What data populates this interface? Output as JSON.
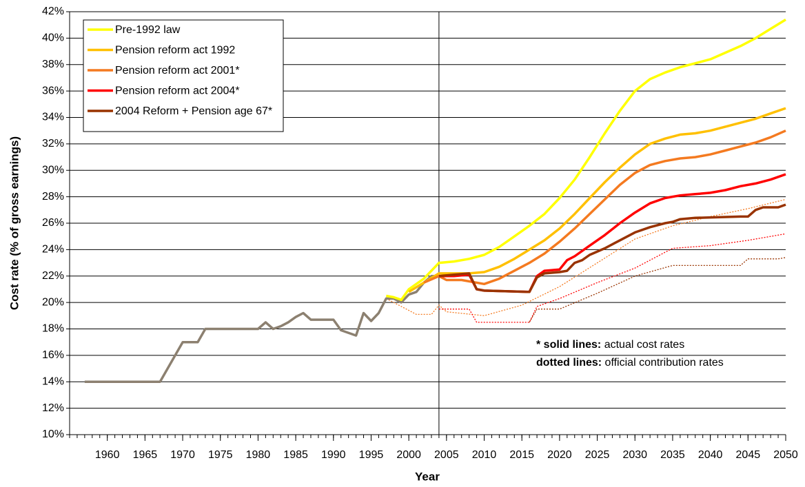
{
  "chart_data": {
    "type": "line",
    "xlabel": "Year",
    "ylabel": "Cost rate (% of gross earnings)",
    "xlim": [
      1955,
      2050
    ],
    "xticks": [
      1960,
      1965,
      1970,
      1975,
      1980,
      1985,
      1990,
      1995,
      2000,
      2005,
      2010,
      2015,
      2020,
      2025,
      2030,
      2035,
      2040,
      2045,
      2050
    ],
    "ylim": [
      10,
      42
    ],
    "yticks": [
      {
        "value": 10,
        "label": "10%"
      },
      {
        "value": 12,
        "label": "12%"
      },
      {
        "value": 14,
        "label": "14%"
      },
      {
        "value": 16,
        "label": "16%"
      },
      {
        "value": 18,
        "label": "18%"
      },
      {
        "value": 20,
        "label": "20%"
      },
      {
        "value": 22,
        "label": "22%"
      },
      {
        "value": 24,
        "label": "24%"
      },
      {
        "value": 26,
        "label": "26%"
      },
      {
        "value": 28,
        "label": "28%"
      },
      {
        "value": 30,
        "label": "30%"
      },
      {
        "value": 32,
        "label": "32%"
      },
      {
        "value": 34,
        "label": "34%"
      },
      {
        "value": 36,
        "label": "36%"
      },
      {
        "value": 38,
        "label": "38%"
      },
      {
        "value": 40,
        "label": "40%"
      },
      {
        "value": 42,
        "label": "42%"
      }
    ],
    "grid": true,
    "legend": "upper-left",
    "reference_x": 2004,
    "annotations": [
      {
        "bold": "* solid lines:",
        "text": " actual cost rates"
      },
      {
        "bold": "dotted lines:",
        "text": " official contribution rates"
      }
    ],
    "series": [
      {
        "name": "Pre-1992 law",
        "color": "#ffff00",
        "x": [
          1997,
          1998,
          1999,
          2000,
          2002,
          2004,
          2006,
          2008,
          2010,
          2012,
          2014,
          2016,
          2018,
          2020,
          2022,
          2024,
          2026,
          2028,
          2030,
          2032,
          2034,
          2036,
          2038,
          2040,
          2042,
          2044,
          2046,
          2048,
          2050
        ],
        "values": [
          20.5,
          20.4,
          20.2,
          21,
          21.8,
          23,
          23.1,
          23.3,
          23.6,
          24.2,
          25,
          25.8,
          26.7,
          27.9,
          29.3,
          31,
          32.8,
          34.5,
          36,
          36.9,
          37.4,
          37.8,
          38.1,
          38.4,
          38.9,
          39.4,
          40,
          40.7,
          41.4
        ]
      },
      {
        "name": "Pension reform act 1992",
        "color": "#ffc000",
        "x": [
          2000,
          2002,
          2004,
          2006,
          2008,
          2010,
          2012,
          2014,
          2016,
          2018,
          2020,
          2022,
          2024,
          2026,
          2028,
          2030,
          2032,
          2034,
          2036,
          2038,
          2040,
          2042,
          2044,
          2046,
          2048,
          2050
        ],
        "values": [
          20.8,
          21.5,
          22.2,
          22.2,
          22.2,
          22.3,
          22.7,
          23.3,
          24,
          24.7,
          25.6,
          26.7,
          27.9,
          29.1,
          30.2,
          31.2,
          32,
          32.4,
          32.7,
          32.8,
          33,
          33.3,
          33.6,
          33.9,
          34.3,
          34.7
        ]
      },
      {
        "name": "Pension reform act 2001*",
        "color": "#f47a20",
        "x": [
          2002,
          2004,
          2005,
          2007,
          2010,
          2012,
          2014,
          2016,
          2018,
          2020,
          2022,
          2024,
          2026,
          2028,
          2030,
          2032,
          2034,
          2036,
          2038,
          2040,
          2042,
          2044,
          2046,
          2048,
          2050
        ],
        "values": [
          21.5,
          22,
          21.7,
          21.7,
          21.4,
          21.8,
          22.4,
          23,
          23.7,
          24.6,
          25.6,
          26.7,
          27.8,
          28.9,
          29.8,
          30.4,
          30.7,
          30.9,
          31,
          31.2,
          31.5,
          31.8,
          32.1,
          32.5,
          33
        ]
      },
      {
        "name": "Pension reform act 2004*",
        "color": "#ff0000",
        "x": [
          2004,
          2006,
          2008,
          2009,
          2010,
          2016,
          2017,
          2018,
          2020,
          2021,
          2022,
          2024,
          2026,
          2028,
          2030,
          2032,
          2034,
          2036,
          2038,
          2040,
          2042,
          2044,
          2046,
          2048,
          2050
        ],
        "values": [
          22,
          22,
          22.1,
          21,
          20.9,
          20.8,
          22,
          22.4,
          22.5,
          23.2,
          23.5,
          24.3,
          25.1,
          26,
          26.8,
          27.5,
          27.9,
          28.1,
          28.2,
          28.3,
          28.5,
          28.8,
          29,
          29.3,
          29.7
        ]
      },
      {
        "name": "2004 Reform + Pension age 67*",
        "color": "#993300",
        "x": [
          2004,
          2006,
          2008,
          2009,
          2010,
          2016,
          2017,
          2018,
          2020,
          2021,
          2022,
          2023,
          2024,
          2026,
          2028,
          2030,
          2032,
          2034,
          2035,
          2036,
          2038,
          2044,
          2045,
          2046,
          2047,
          2049,
          2050
        ],
        "values": [
          22,
          22.1,
          22.2,
          21,
          20.9,
          20.8,
          21.9,
          22.2,
          22.3,
          22.4,
          23,
          23.2,
          23.6,
          24.1,
          24.7,
          25.3,
          25.7,
          26,
          26.1,
          26.3,
          26.4,
          26.5,
          26.5,
          27,
          27.2,
          27.2,
          27.4
        ]
      }
    ],
    "history": {
      "color": "#8c8070",
      "x": [
        1957,
        1967,
        1970,
        1972,
        1973,
        1980,
        1981,
        1982,
        1983,
        1984,
        1985,
        1986,
        1987,
        1990,
        1991,
        1993,
        1994,
        1995,
        1996,
        1997,
        1998,
        1999,
        2000,
        2001,
        2002,
        2003,
        2004
      ],
      "values": [
        14,
        14,
        17,
        17,
        18,
        18,
        18.5,
        18,
        18.2,
        18.5,
        18.9,
        19.2,
        18.7,
        18.7,
        17.9,
        17.5,
        19.2,
        18.6,
        19.2,
        20.3,
        20.3,
        20,
        20.6,
        20.8,
        21.5,
        22,
        22
      ]
    },
    "dotted_series": [
      {
        "color": "#f47a20",
        "x": [
          1997,
          2000,
          2001,
          2003,
          2004,
          2005,
          2010,
          2015,
          2020,
          2025,
          2030,
          2035,
          2040,
          2045,
          2050
        ],
        "values": [
          20.3,
          19.4,
          19.1,
          19.1,
          19.8,
          19.3,
          19,
          19.8,
          21.2,
          23,
          24.8,
          25.8,
          26.5,
          27.1,
          27.8
        ]
      },
      {
        "color": "#ff0000",
        "x": [
          2004,
          2008,
          2009,
          2016,
          2017,
          2020,
          2025,
          2030,
          2035,
          2040,
          2045,
          2050
        ],
        "values": [
          19.5,
          19.5,
          18.5,
          18.5,
          19.7,
          20.3,
          21.5,
          22.6,
          24.1,
          24.3,
          24.7,
          25.2
        ]
      },
      {
        "color": "#993300",
        "x": [
          2016,
          2017,
          2020,
          2025,
          2030,
          2035,
          2044,
          2045,
          2049,
          2050
        ],
        "values": [
          18.5,
          19.5,
          19.5,
          20.7,
          22,
          22.8,
          22.8,
          23.3,
          23.3,
          23.4
        ]
      }
    ]
  }
}
